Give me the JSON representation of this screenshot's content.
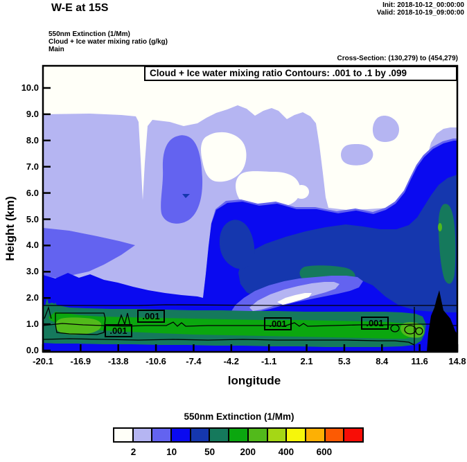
{
  "header": {
    "title": "W-E at 15S",
    "init": "Init: 2018-10-12_00:00:00",
    "valid": "Valid: 2018-10-19_09:00:00"
  },
  "legend_info": {
    "line1": "550nm Extinction  (1/Mm)",
    "line2": "Cloud + Ice water mixing ratio  (g/kg)",
    "line3": "Main"
  },
  "cross_section": "Cross-Section: (130,279) to (454,279)",
  "plot": {
    "title": "Cloud + Ice water mixing ratio Contours: .001 to .1 by .099",
    "xlabel": "longitude",
    "ylabel": "Height (km)"
  },
  "chart_data": {
    "type": "heatmap",
    "subtype": "filled-contour vertical cross-section (west-east at 15S)",
    "title": "Cloud + Ice water mixing ratio Contours: .001 to .1 by .099",
    "xlabel": "longitude",
    "ylabel": "Height (km)",
    "x_ticks": [
      "-20.1",
      "-16.9",
      "-13.8",
      "-10.6",
      "-7.4",
      "-4.2",
      "-1.1",
      "2.1",
      "5.3",
      "8.4",
      "11.6",
      "14.8"
    ],
    "y_ticks": [
      "0.0",
      "1.0",
      "2.0",
      "3.0",
      "4.0",
      "5.0",
      "6.0",
      "7.0",
      "8.0",
      "9.0",
      "10.0"
    ],
    "xlim": [
      -20.1,
      14.8
    ],
    "ylim": [
      0,
      10.9
    ],
    "grid": false,
    "fill_field": "550nm Extinction (1/Mm)",
    "contour_field": "Cloud + Ice water mixing ratio (g/kg)",
    "contour_levels": {
      "from": ".001",
      "to": ".1",
      "by": ".099"
    },
    "contour_labels": [
      ".001",
      ".001",
      ".001",
      ".001"
    ],
    "colorbar": {
      "title": "550nm Extinction  (1/Mm)",
      "position": "bottom",
      "colors": [
        "#fffff8",
        "#b5b5f2",
        "#6363f0",
        "#0a0af0",
        "#1537ae",
        "#15795c",
        "#0ba70f",
        "#52ba1b",
        "#a5d715",
        "#f6f60b",
        "#fdb004",
        "#fc5a03",
        "#f80d06"
      ],
      "tick_labels": [
        "2",
        "10",
        "50",
        "200",
        "400",
        "600"
      ],
      "tick_after_swatch": [
        1,
        3,
        5,
        7,
        9,
        11
      ]
    },
    "features": [
      "near-surface extinction layer ~0.3-1.3 km spanning nearly full width, peaking 200-400 1/Mm (green core)",
      "broad 2-20 1/Mm haze (lavender/purple) filling most of the section below 9 km",
      "deeper 50-100 1/Mm plume (dark blue) over right half between ~1 and 4 km, with 100-200 1/Mm teal patches",
      "elevated column of ~20-50 1/Mm near longitude -10 between 5 and 8 km",
      "black terrain peak near longitude 12-14 rising to ~2.4 km",
      ".001 g/kg cloud mixing-ratio contour hugging the surface layer"
    ]
  }
}
